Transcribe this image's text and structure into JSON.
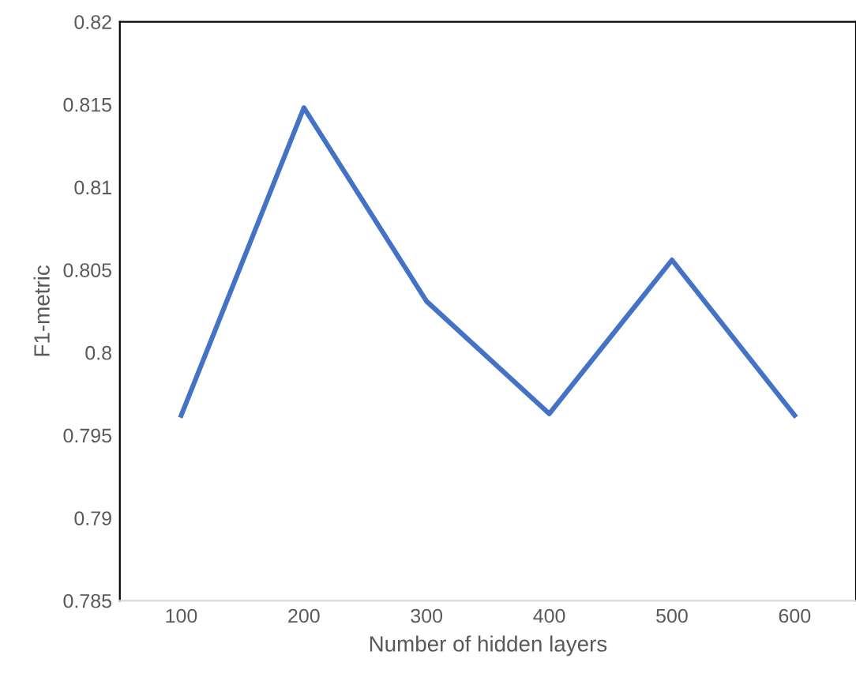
{
  "chart_data": {
    "type": "line",
    "xlabel": "Number of hidden layers",
    "ylabel": "F1-metric",
    "categories": [
      "100",
      "200",
      "300",
      "400",
      "500",
      "600"
    ],
    "series": [
      {
        "color": "#4472c4",
        "values": [
          0.7962,
          0.8148,
          0.8031,
          0.7963,
          0.8056,
          0.7962
        ]
      }
    ],
    "ylim": [
      0.785,
      0.82
    ],
    "yticks": [
      0.785,
      0.79,
      0.795,
      0.8,
      0.805,
      0.81,
      0.815,
      0.82
    ],
    "grid": false,
    "marker": "none",
    "line_style": "solid"
  }
}
